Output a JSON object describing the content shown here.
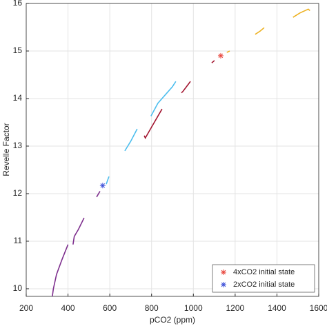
{
  "chart_data": {
    "type": "line",
    "xlabel": "pCO2 (ppm)",
    "ylabel": "Revelle Factor",
    "xlim": [
      200,
      1600
    ],
    "xticks": [
      200,
      400,
      600,
      800,
      1000,
      1200,
      1400,
      1600
    ],
    "ylim": [
      9.84,
      16
    ],
    "yticks": [
      10,
      11,
      12,
      13,
      14,
      15,
      16
    ],
    "grid": true,
    "legend_position": "lower right",
    "series": [
      {
        "color": "#7e2f8e",
        "x": [
          325,
          330,
          345,
          370,
          400,
          null,
          424,
          430,
          450,
          477,
          null,
          537,
          553
        ],
        "values": [
          9.84,
          10.0,
          10.3,
          10.6,
          10.93,
          null,
          10.93,
          11.1,
          11.25,
          11.49,
          null,
          11.93,
          12.05
        ]
      },
      {
        "color": "#4dbeee",
        "x": [
          583,
          596,
          null,
          672,
          700,
          731,
          null,
          797,
          830,
          870,
          900,
          916
        ],
        "values": [
          12.2,
          12.36,
          null,
          12.9,
          13.1,
          13.36,
          null,
          13.63,
          13.9,
          14.1,
          14.25,
          14.36
        ]
      },
      {
        "color": "#a2142f",
        "x": [
          765,
          770,
          800,
          850,
          null,
          943,
          950,
          986,
          null,
          1088,
          1101
        ],
        "values": [
          13.22,
          13.17,
          13.4,
          13.78,
          null,
          14.12,
          14.15,
          14.36,
          null,
          14.75,
          14.8
        ]
      },
      {
        "color": "#edb120",
        "x": [
          1160,
          1174,
          null,
          1296,
          1320,
          1339,
          null,
          1477,
          1510,
          1550,
          1558
        ],
        "values": [
          14.97,
          15.0,
          null,
          15.35,
          15.42,
          15.49,
          null,
          15.71,
          15.8,
          15.88,
          15.85
        ]
      }
    ],
    "markers": [
      {
        "name": "4xCO2 initial state",
        "color": "#e8453c",
        "x": 1131,
        "y": 14.9
      },
      {
        "name": "2xCO2 initial state",
        "color": "#3c4fd8",
        "x": 566,
        "y": 12.17
      }
    ]
  }
}
